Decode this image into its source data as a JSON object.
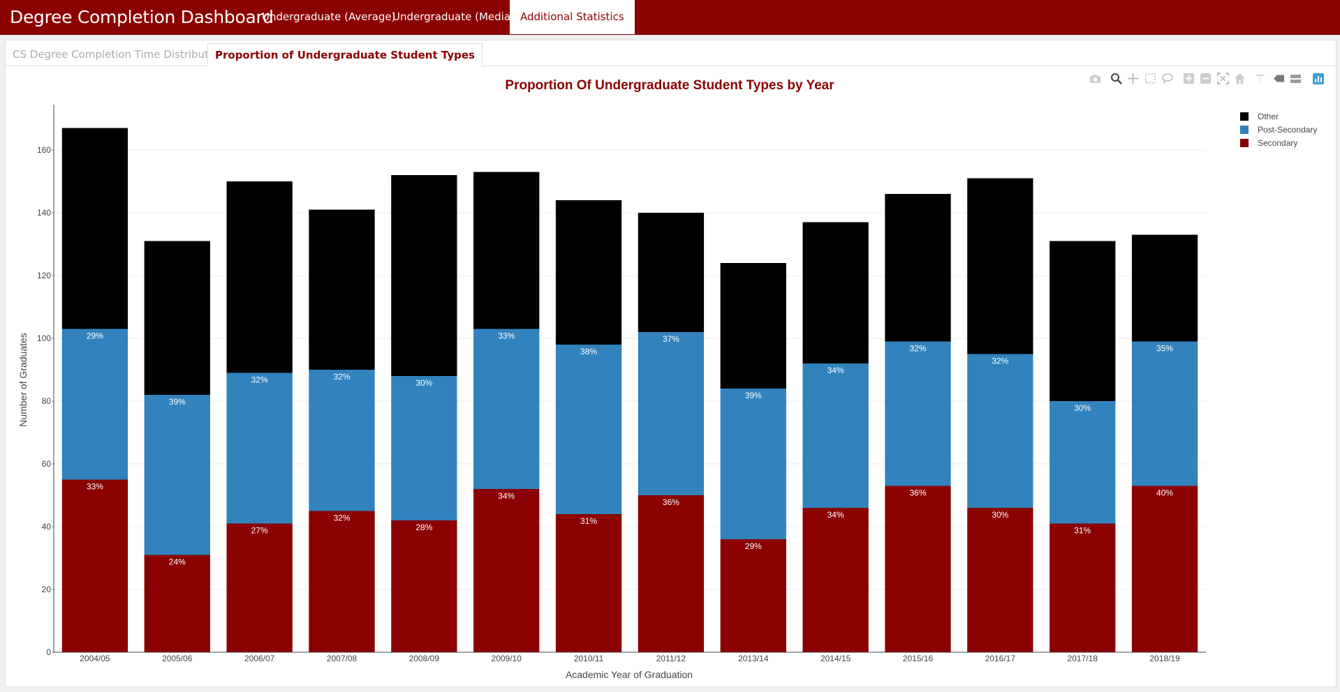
{
  "navbar": {
    "brand": "Degree Completion Dashboard",
    "links": [
      "Undergraduate (Average)",
      "Undergraduate (Median)",
      "Additional Statistics"
    ],
    "active_index": 2
  },
  "tabs": {
    "items": [
      "CS Degree Completion Time Distribution",
      "Proportion of Undergraduate Student Types"
    ],
    "active_index": 1
  },
  "colors": {
    "brand": "#8b0000",
    "secondary": "#8b0000",
    "post_secondary": "#3182bd",
    "other": "#000000"
  },
  "toolbar_icons": [
    "camera-icon",
    "zoom-icon",
    "pan-icon",
    "box-select-icon",
    "lasso-icon",
    "zoom-in-icon",
    "zoom-out-icon",
    "autoscale-icon",
    "reset-axes-icon",
    "spike-lines-icon",
    "hover-closest-icon",
    "hover-compare-icon",
    "plotly-logo-icon"
  ],
  "chart_data": {
    "type": "bar",
    "stacked": true,
    "title": "Proportion Of Undergraduate Student Types by Year",
    "xlabel": "Academic Year of Graduation",
    "ylabel": "Number of Graduates",
    "ylim": [
      0,
      170
    ],
    "yticks": [
      0,
      20,
      40,
      60,
      80,
      100,
      120,
      140,
      160
    ],
    "grid": true,
    "legend_position": "top-right",
    "categories": [
      "2004/05",
      "2005/06",
      "2006/07",
      "2007/08",
      "2008/09",
      "2009/10",
      "2010/11",
      "2011/12",
      "2013/14",
      "2014/15",
      "2015/16",
      "2016/17",
      "2017/18",
      "2018/19"
    ],
    "series": [
      {
        "name": "Secondary",
        "color": "#8b0000",
        "values": [
          55,
          31,
          41,
          45,
          42,
          52,
          44,
          50,
          36,
          46,
          53,
          46,
          41,
          53
        ],
        "labels": [
          "33%",
          "24%",
          "27%",
          "32%",
          "28%",
          "34%",
          "31%",
          "36%",
          "29%",
          "34%",
          "36%",
          "30%",
          "31%",
          "40%"
        ]
      },
      {
        "name": "Post-Secondary",
        "color": "#3182bd",
        "values": [
          48,
          51,
          48,
          45,
          46,
          51,
          54,
          52,
          48,
          46,
          46,
          49,
          39,
          46
        ],
        "labels": [
          "29%",
          "39%",
          "32%",
          "32%",
          "30%",
          "33%",
          "38%",
          "37%",
          "39%",
          "34%",
          "32%",
          "32%",
          "30%",
          "35%"
        ]
      },
      {
        "name": "Other",
        "color": "#000000",
        "values": [
          64,
          49,
          61,
          51,
          64,
          50,
          46,
          38,
          40,
          45,
          47,
          56,
          51,
          34
        ],
        "labels": []
      }
    ],
    "legend_order": [
      "Other",
      "Post-Secondary",
      "Secondary"
    ]
  }
}
